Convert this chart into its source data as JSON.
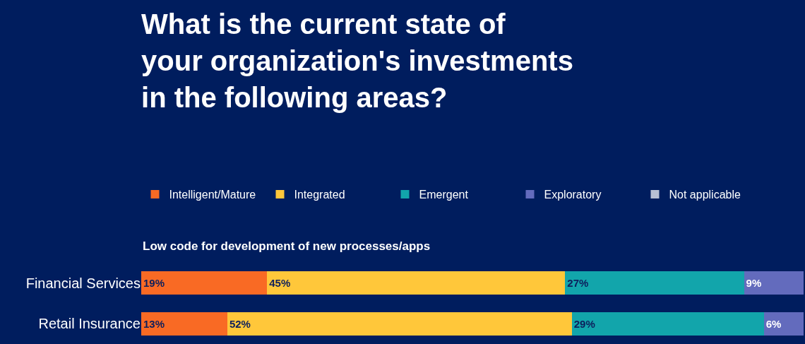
{
  "chart_data": {
    "type": "bar",
    "orientation": "horizontal",
    "stacked": true,
    "legend": "top",
    "grid": false,
    "tick_labels": "y",
    "title": "What is the current state of\nyour organization's investments\nin the following areas?",
    "subtitle": "Low code for development of new processes/apps",
    "categories": [
      "Financial Services",
      "Retail Insurance"
    ],
    "series": [
      {
        "name": "Intelligent/Mature",
        "color": "#f96a24",
        "values": [
          19,
          13
        ],
        "value_labels": [
          "19%",
          "13%"
        ]
      },
      {
        "name": "Integrated",
        "color": "#ffc73a",
        "values": [
          45,
          52
        ],
        "value_labels": [
          "45%",
          "52%"
        ]
      },
      {
        "name": "Emergent",
        "color": "#12a5ab",
        "values": [
          27,
          29
        ],
        "value_labels": [
          "27%",
          "29%"
        ]
      },
      {
        "name": "Exploratory",
        "color": "#636bbd",
        "values": [
          9,
          6
        ],
        "value_labels": [
          "9%",
          "6%"
        ]
      },
      {
        "name": "Not applicable",
        "color": "#b8bfd4",
        "values": [
          null,
          null
        ]
      }
    ]
  }
}
